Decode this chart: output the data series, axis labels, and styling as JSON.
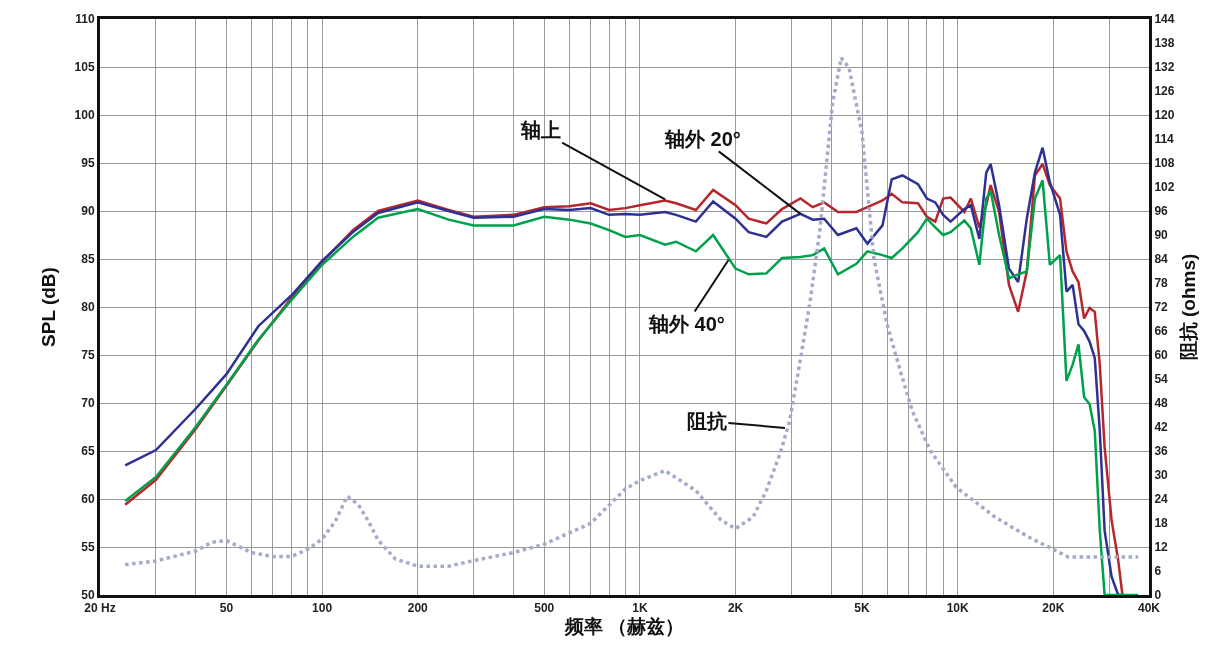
{
  "chart_data": {
    "type": "line",
    "xlabel": "频率 （赫兹）",
    "ylabel": "SPL (dB)",
    "y2label": "阻抗 (ohms)",
    "log": "x",
    "grid": true,
    "marker": "none",
    "xlim": [
      20,
      40000
    ],
    "xticks": [
      {
        "value": 20,
        "label": "20 Hz"
      },
      {
        "value": 30,
        "label": null
      },
      {
        "value": 40,
        "label": null
      },
      50,
      {
        "value": 60,
        "label": null
      },
      {
        "value": 70,
        "label": null
      },
      {
        "value": 80,
        "label": null
      },
      {
        "value": 90,
        "label": null
      },
      100,
      200,
      {
        "value": 300,
        "label": null
      },
      {
        "value": 400,
        "label": null
      },
      500,
      {
        "value": 600,
        "label": null
      },
      {
        "value": 700,
        "label": null
      },
      {
        "value": 800,
        "label": null
      },
      {
        "value": 900,
        "label": null
      },
      {
        "value": 1000,
        "label": "1K"
      },
      {
        "value": 2000,
        "label": "2K"
      },
      {
        "value": 3000,
        "label": null
      },
      {
        "value": 4000,
        "label": null
      },
      {
        "value": 5000,
        "label": "5K"
      },
      {
        "value": 6000,
        "label": null
      },
      {
        "value": 7000,
        "label": null
      },
      {
        "value": 8000,
        "label": null
      },
      {
        "value": 9000,
        "label": null
      },
      {
        "value": 10000,
        "label": "10K"
      },
      {
        "value": 20000,
        "label": "20K"
      },
      {
        "value": 30000,
        "label": null
      },
      {
        "value": 40000,
        "label": "40K"
      }
    ],
    "ylim": [
      50,
      110
    ],
    "yticks": [
      50,
      55,
      60,
      65,
      70,
      75,
      80,
      85,
      90,
      95,
      100,
      105,
      110
    ],
    "y2lim": [
      0,
      144
    ],
    "y2ticks": [
      0,
      6,
      12,
      18,
      24,
      30,
      36,
      42,
      48,
      54,
      60,
      66,
      72,
      78,
      84,
      90,
      96,
      102,
      108,
      114,
      120,
      126,
      132,
      138,
      144
    ],
    "x": [
      24,
      30,
      40,
      50,
      63,
      80,
      100,
      125,
      150,
      200,
      250,
      300,
      400,
      500,
      600,
      700,
      800,
      900,
      1000,
      1200,
      1300,
      1500,
      1700,
      2000,
      2200,
      2500,
      2800,
      3200,
      3500,
      3800,
      4200,
      4800,
      5200,
      5800,
      6200,
      6700,
      7500,
      8000,
      8500,
      9000,
      9500,
      10500,
      11000,
      11700,
      12300,
      12700,
      13500,
      14500,
      15500,
      16500,
      17500,
      18500,
      19500,
      21000,
      22000,
      23000,
      24000,
      25000,
      26000,
      27000,
      28000,
      29000,
      30500,
      32000,
      33000,
      37000
    ],
    "series": [
      {
        "color": "#b5272d",
        "values": [
          59.4,
          62.0,
          67.3,
          71.8,
          76.5,
          80.9,
          84.7,
          88.0,
          90.0,
          91.1,
          90.1,
          89.4,
          89.6,
          90.4,
          90.5,
          90.8,
          90.1,
          90.3,
          90.6,
          91.1,
          90.8,
          90.1,
          92.2,
          90.6,
          89.2,
          88.7,
          90.2,
          91.3,
          90.4,
          90.9,
          89.9,
          89.9,
          90.4,
          91.1,
          91.8,
          90.9,
          90.8,
          89.4,
          88.9,
          91.3,
          91.4,
          89.9,
          91.3,
          88.3,
          90.6,
          92.7,
          89.9,
          82.3,
          79.5,
          83.7,
          93.7,
          94.9,
          92.7,
          91.3,
          85.8,
          83.7,
          82.6,
          78.8,
          79.9,
          79.5,
          74.0,
          65.4,
          57.8,
          53.6,
          50,
          null
        ]
      },
      {
        "color": "#2e3192",
        "values": [
          63.5,
          65.1,
          69.4,
          73.0,
          78.0,
          81.2,
          84.8,
          87.8,
          89.8,
          90.9,
          90.0,
          89.3,
          89.4,
          90.2,
          90.1,
          90.3,
          89.6,
          89.7,
          89.6,
          89.9,
          89.6,
          88.9,
          91.0,
          89.2,
          87.8,
          87.3,
          88.9,
          89.7,
          89.1,
          89.2,
          87.5,
          88.2,
          86.6,
          88.5,
          93.3,
          93.7,
          92.8,
          91.3,
          90.9,
          89.6,
          88.9,
          90.2,
          90.6,
          87.1,
          94.0,
          94.9,
          90.6,
          84.0,
          82.6,
          89.2,
          94.0,
          96.6,
          93.0,
          89.6,
          81.6,
          82.3,
          78.2,
          77.5,
          76.4,
          74.7,
          67.1,
          56.7,
          51.9,
          50,
          50,
          null
        ]
      },
      {
        "color": "#00a14b",
        "values": [
          59.8,
          62.3,
          67.5,
          71.9,
          76.6,
          80.7,
          84.4,
          87.3,
          89.3,
          90.2,
          89.1,
          88.5,
          88.5,
          89.4,
          89.1,
          88.7,
          88.0,
          87.3,
          87.5,
          86.5,
          86.8,
          85.8,
          87.5,
          84.0,
          83.4,
          83.5,
          85.1,
          85.2,
          85.4,
          86.1,
          83.4,
          84.5,
          85.8,
          85.4,
          85.1,
          86.1,
          87.8,
          89.2,
          88.3,
          87.5,
          87.8,
          89.0,
          88.2,
          84.4,
          91.3,
          92.1,
          87.5,
          83.0,
          83.4,
          83.7,
          91.3,
          93.2,
          84.4,
          85.4,
          72.3,
          74.0,
          76.1,
          70.6,
          69.9,
          67.1,
          56.7,
          50,
          50,
          50,
          50,
          50
        ]
      },
      {
        "color": "#a3abc9",
        "axis": "y2",
        "line_style": "dotted",
        "x": [
          24,
          30,
          40,
          45,
          50,
          60,
          70,
          80,
          90,
          100,
          110,
          120,
          130,
          140,
          150,
          170,
          200,
          250,
          300,
          400,
          500,
          700,
          900,
          1000,
          1200,
          1500,
          1800,
          2000,
          2270,
          2500,
          2760,
          2960,
          3180,
          3420,
          3680,
          4040,
          4300,
          4550,
          5000,
          5450,
          6000,
          6600,
          7200,
          8200,
          9900,
          13100,
          16700,
          22300,
          37000
        ],
        "values": [
          7.6,
          8.5,
          11.0,
          13.2,
          13.6,
          10.6,
          9.6,
          9.6,
          11.4,
          14.0,
          18.4,
          24.7,
          22.6,
          18.4,
          13.7,
          9.0,
          7.2,
          7.2,
          8.6,
          10.6,
          12.7,
          17.9,
          26.5,
          28.6,
          31.1,
          26.1,
          18.7,
          16.6,
          19.5,
          26.1,
          35.3,
          43.5,
          57.7,
          72.6,
          90.8,
          123.0,
          134.3,
          131.8,
          115.6,
          84.1,
          67.6,
          56.0,
          46.0,
          36.1,
          26.9,
          19.5,
          14.5,
          9.5,
          9.5
        ]
      }
    ],
    "annotations": [
      {
        "text": "轴上",
        "x": 1200,
        "y": 91.2
      },
      {
        "text": "轴外 20°",
        "x": 3200,
        "y": 89.7
      },
      {
        "text": "轴外 40°",
        "x": 1900,
        "y": 84.9
      },
      {
        "text": "阻抗",
        "x": 2860,
        "y": 67.4
      }
    ]
  }
}
